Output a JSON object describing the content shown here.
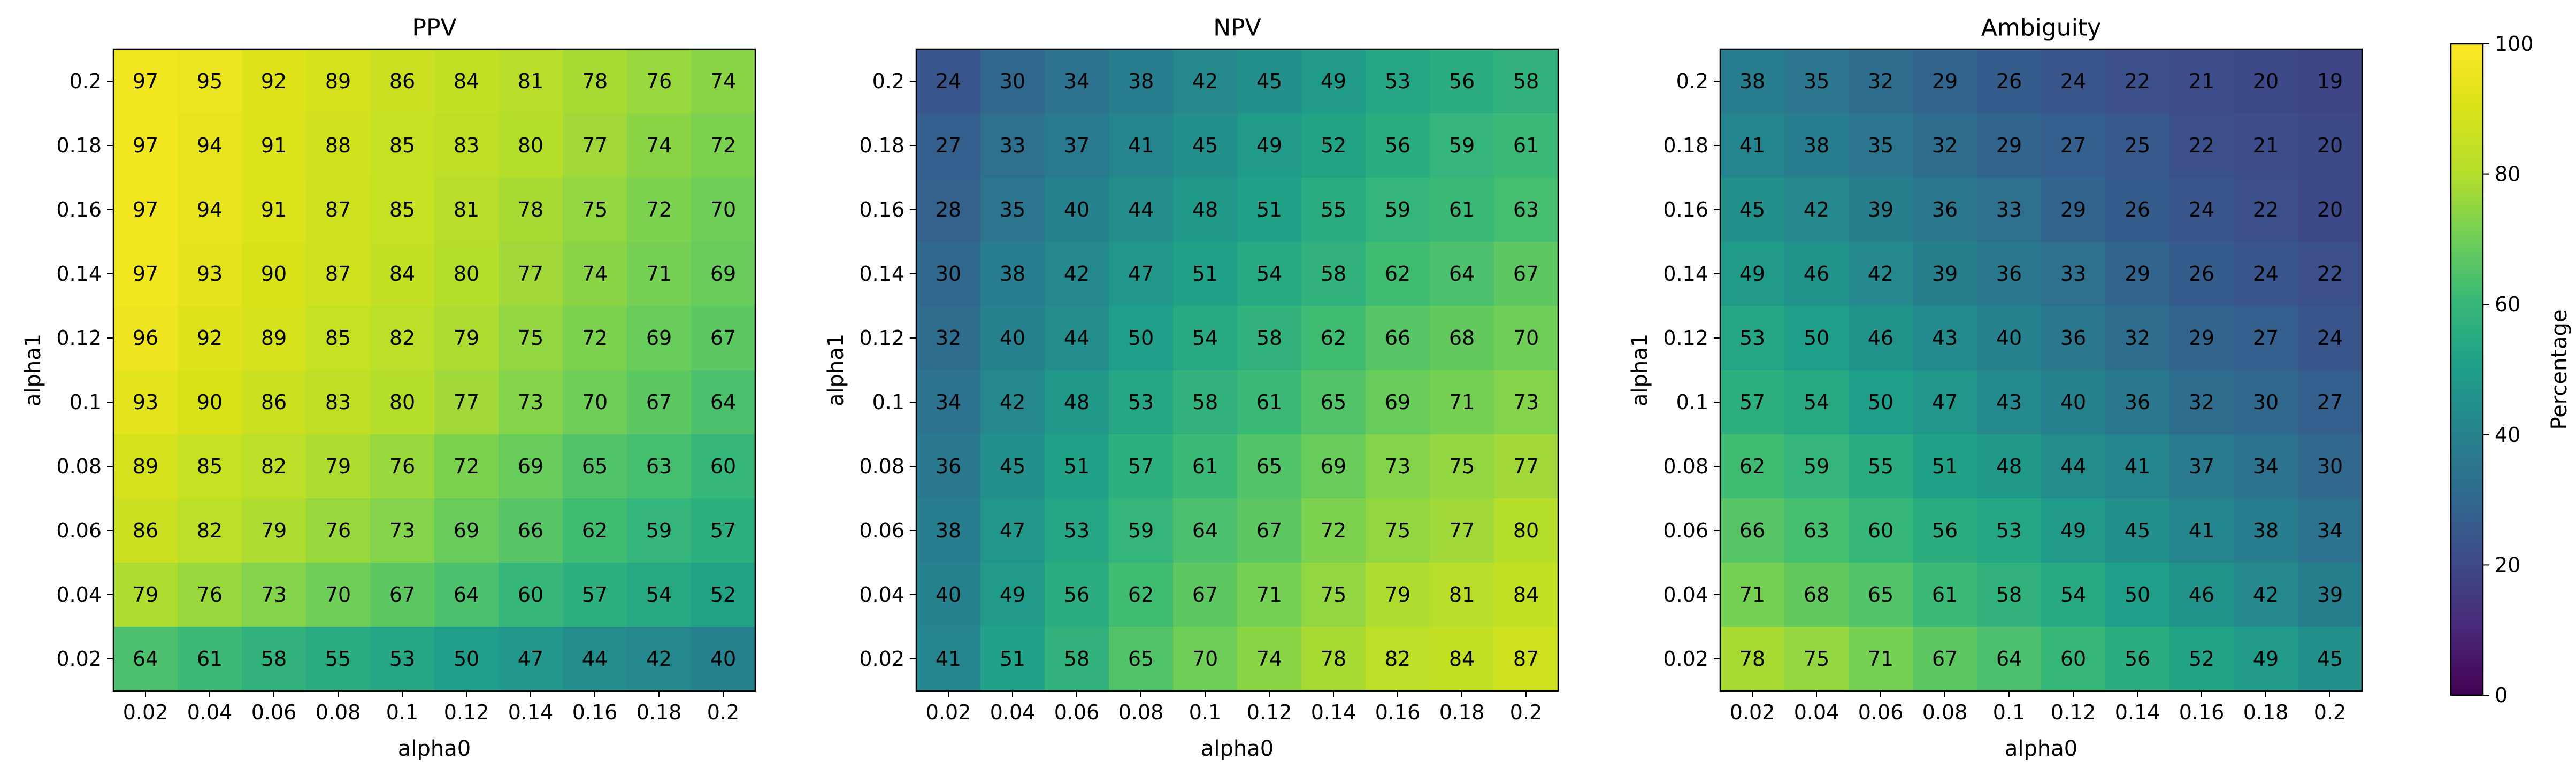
{
  "chart_data": {
    "type": "heatmap",
    "xlabel": "alpha0",
    "ylabel": "alpha1",
    "x_ticks": [
      "0.02",
      "0.04",
      "0.06",
      "0.08",
      "0.1",
      "0.12",
      "0.14",
      "0.16",
      "0.18",
      "0.2"
    ],
    "y_ticks_top_to_bottom": [
      "0.2",
      "0.18",
      "0.16",
      "0.14",
      "0.12",
      "0.1",
      "0.08",
      "0.06",
      "0.04",
      "0.02"
    ],
    "colormap": "viridis",
    "color_range": [
      0,
      100
    ],
    "colorbar": {
      "label": "Percentage",
      "ticks": [
        "0",
        "20",
        "40",
        "60",
        "80",
        "100"
      ]
    },
    "panels": [
      {
        "title": "PPV",
        "values_top_to_bottom": [
          [
            97,
            95,
            92,
            89,
            86,
            84,
            81,
            78,
            76,
            74
          ],
          [
            97,
            94,
            91,
            88,
            85,
            83,
            80,
            77,
            74,
            72
          ],
          [
            97,
            94,
            91,
            87,
            85,
            81,
            78,
            75,
            72,
            70
          ],
          [
            97,
            93,
            90,
            87,
            84,
            80,
            77,
            74,
            71,
            69
          ],
          [
            96,
            92,
            89,
            85,
            82,
            79,
            75,
            72,
            69,
            67
          ],
          [
            93,
            90,
            86,
            83,
            80,
            77,
            73,
            70,
            67,
            64
          ],
          [
            89,
            85,
            82,
            79,
            76,
            72,
            69,
            65,
            63,
            60
          ],
          [
            86,
            82,
            79,
            76,
            73,
            69,
            66,
            62,
            59,
            57
          ],
          [
            79,
            76,
            73,
            70,
            67,
            64,
            60,
            57,
            54,
            52
          ],
          [
            64,
            61,
            58,
            55,
            53,
            50,
            47,
            44,
            42,
            40
          ]
        ]
      },
      {
        "title": "NPV",
        "values_top_to_bottom": [
          [
            24,
            30,
            34,
            38,
            42,
            45,
            49,
            53,
            56,
            58
          ],
          [
            27,
            33,
            37,
            41,
            45,
            49,
            52,
            56,
            59,
            61
          ],
          [
            28,
            35,
            40,
            44,
            48,
            51,
            55,
            59,
            61,
            63
          ],
          [
            30,
            38,
            42,
            47,
            51,
            54,
            58,
            62,
            64,
            67
          ],
          [
            32,
            40,
            44,
            50,
            54,
            58,
            62,
            66,
            68,
            70
          ],
          [
            34,
            42,
            48,
            53,
            58,
            61,
            65,
            69,
            71,
            73
          ],
          [
            36,
            45,
            51,
            57,
            61,
            65,
            69,
            73,
            75,
            77
          ],
          [
            38,
            47,
            53,
            59,
            64,
            67,
            72,
            75,
            77,
            80
          ],
          [
            40,
            49,
            56,
            62,
            67,
            71,
            75,
            79,
            81,
            84
          ],
          [
            41,
            51,
            58,
            65,
            70,
            74,
            78,
            82,
            84,
            87
          ]
        ]
      },
      {
        "title": "Ambiguity",
        "values_top_to_bottom": [
          [
            38,
            35,
            32,
            29,
            26,
            24,
            22,
            21,
            20,
            19
          ],
          [
            41,
            38,
            35,
            32,
            29,
            27,
            25,
            22,
            21,
            20
          ],
          [
            45,
            42,
            39,
            36,
            33,
            29,
            26,
            24,
            22,
            20
          ],
          [
            49,
            46,
            42,
            39,
            36,
            33,
            29,
            26,
            24,
            22
          ],
          [
            53,
            50,
            46,
            43,
            40,
            36,
            32,
            29,
            27,
            24
          ],
          [
            57,
            54,
            50,
            47,
            43,
            40,
            36,
            32,
            30,
            27
          ],
          [
            62,
            59,
            55,
            51,
            48,
            44,
            41,
            37,
            34,
            30
          ],
          [
            66,
            63,
            60,
            56,
            53,
            49,
            45,
            41,
            38,
            34
          ],
          [
            71,
            68,
            65,
            61,
            58,
            54,
            50,
            46,
            42,
            39
          ],
          [
            78,
            75,
            71,
            67,
            64,
            60,
            56,
            52,
            49,
            45
          ]
        ]
      }
    ]
  }
}
